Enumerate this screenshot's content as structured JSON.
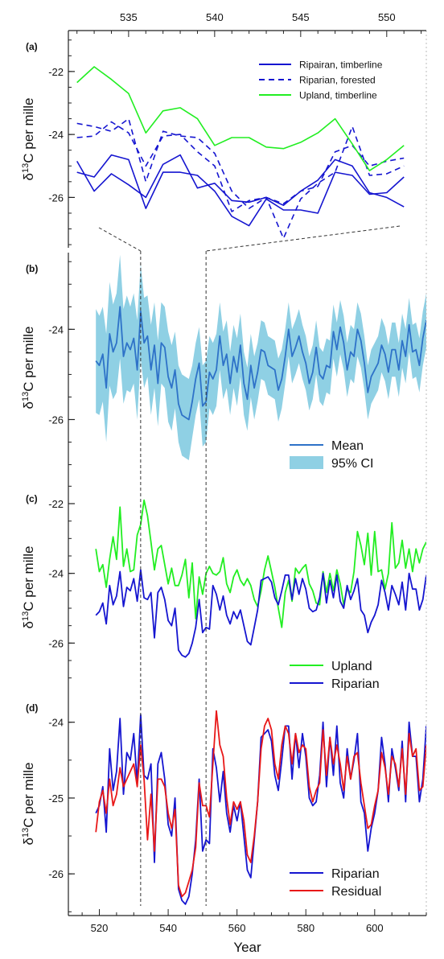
{
  "colors": {
    "upland": "#22ee22",
    "riparian": "#1515d0",
    "residual": "#e81818",
    "mean": "#2e72c8",
    "ci": "#8fd0e4",
    "axis": "#222222",
    "guide": "#333333"
  },
  "chart_data": [
    {
      "id": "a",
      "type": "line",
      "panel_label": "(a)",
      "ylabel": {
        "delta": "δ",
        "sup": "13",
        "rest": "C per mille"
      },
      "xlabel": "",
      "top_axis": true,
      "xlim": [
        531.5,
        552.3
      ],
      "ylim": [
        -27.6,
        -20.7
      ],
      "x_ticks": [
        535,
        540,
        545,
        550
      ],
      "y_ticks": [
        -22,
        -24,
        -26
      ],
      "x": [
        532,
        533,
        534,
        535,
        536,
        537,
        538,
        539,
        540,
        541,
        542,
        543,
        544,
        545,
        546,
        547,
        548,
        549,
        550,
        551
      ],
      "series": [
        {
          "name": "Ripairan, timberline",
          "color_key": "riparian",
          "dash": false,
          "values": [
            -24.85,
            -25.8,
            -25.25,
            -25.6,
            -26.0,
            -24.95,
            -24.65,
            -25.7,
            -25.55,
            -26.1,
            -26.15,
            -26.0,
            -26.25,
            -25.8,
            -25.45,
            -24.8,
            -25.0,
            -25.85,
            -26.0,
            -26.3
          ]
        },
        {
          "name": "",
          "color_key": "riparian",
          "dash": false,
          "values": [
            -25.2,
            -25.35,
            -24.65,
            -24.8,
            -26.35,
            -25.2,
            -25.2,
            -25.3,
            -25.8,
            -26.6,
            -26.9,
            -26.05,
            -26.4,
            -26.4,
            -26.5,
            -25.2,
            -25.3,
            -25.9,
            -25.85,
            -25.35
          ]
        },
        {
          "name": "Riparian, forested",
          "color_key": "riparian",
          "dash": true,
          "values": [
            -23.65,
            -23.75,
            -23.9,
            -23.5,
            -25.5,
            -23.9,
            -24.05,
            -24.1,
            -24.6,
            -25.8,
            -26.35,
            -26.0,
            -26.2,
            -25.8,
            -25.65,
            -24.55,
            -24.35,
            -25.0,
            -24.85,
            -24.75
          ]
        },
        {
          "name": "",
          "color_key": "riparian",
          "dash": true,
          "values": [
            -24.1,
            -24.05,
            -23.6,
            -23.95,
            -25.0,
            -24.05,
            -24.0,
            -24.55,
            -25.0,
            -26.45,
            -26.1,
            -26.0,
            -27.3,
            -26.05,
            -25.55,
            -25.2,
            -23.75,
            -25.3,
            -25.25,
            -25.0
          ]
        },
        {
          "name": "Upland, timberline",
          "color_key": "upland",
          "dash": false,
          "values": [
            -22.35,
            -21.85,
            -22.25,
            -22.7,
            -23.95,
            -23.25,
            -23.15,
            -23.5,
            -24.35,
            -24.1,
            -24.1,
            -24.4,
            -24.45,
            -24.25,
            -23.95,
            -23.5,
            -24.3,
            -25.15,
            -24.8,
            -24.35
          ]
        }
      ]
    },
    {
      "id": "b",
      "type": "area",
      "panel_label": "(b)",
      "ylabel": {
        "delta": "δ",
        "sup": "13",
        "rest": "C per mille"
      },
      "xlabel": "",
      "xlim": [
        511,
        615
      ],
      "ylim": [
        -27.4,
        -22.3
      ],
      "y_ticks": [
        -24,
        -26
      ],
      "x_start": 519,
      "x_step": 1,
      "series": [
        {
          "name": "Mean",
          "color_key": "mean",
          "values": [
            -24.7,
            -24.8,
            -24.55,
            -25.3,
            -24.1,
            -24.5,
            -24.3,
            -23.5,
            -24.6,
            -24.3,
            -24.45,
            -24.2,
            -24.9,
            -23.6,
            -24.3,
            -24.15,
            -24.9,
            -24.35,
            -25.2,
            -24.3,
            -24.4,
            -25.05,
            -25.3,
            -24.9,
            -25.65,
            -25.9,
            -25.95,
            -26.0,
            -25.6,
            -25.1,
            -24.75,
            -25.7,
            -25.6,
            -24.95,
            -25.1,
            -24.9,
            -24.15,
            -24.8,
            -24.55,
            -25.2,
            -24.6,
            -24.95,
            -24.35,
            -25.2,
            -25.55,
            -24.8,
            -25.3,
            -24.95,
            -24.45,
            -24.5,
            -24.8,
            -24.85,
            -24.9,
            -25.35,
            -25.1,
            -24.6,
            -24.0,
            -24.6,
            -24.4,
            -24.15,
            -24.5,
            -24.75,
            -25.2,
            -24.95,
            -24.4,
            -25.0,
            -25.1,
            -24.8,
            -24.85,
            -24.05,
            -24.45,
            -23.95,
            -24.3,
            -24.9,
            -24.5,
            -24.6,
            -24.0,
            -24.25,
            -24.75,
            -25.4,
            -25.05,
            -24.9,
            -24.75,
            -24.35,
            -24.55,
            -24.95,
            -24.45,
            -24.45,
            -24.9,
            -24.25,
            -24.6,
            -23.9,
            -24.5,
            -24.45,
            -24.8,
            -24.2,
            -23.8
          ]
        },
        {
          "name": "95% CI",
          "color_key": "ci",
          "band": true,
          "halfwidth": [
            1.15,
            1.1,
            1.05,
            1.2,
            1.15,
            1.05,
            1.1,
            1.15,
            1.05,
            1.05,
            0.95,
            1.0,
            1.1,
            1.05,
            1.0,
            0.9,
            1.0,
            0.95,
            0.95,
            0.9,
            0.9,
            1.0,
            0.95,
            0.85,
            0.85,
            0.9,
            0.9,
            0.9,
            0.8,
            0.8,
            0.8,
            0.9,
            0.9,
            0.8,
            0.8,
            0.8,
            0.75,
            0.75,
            0.75,
            0.7,
            0.7,
            0.75,
            0.7,
            0.7,
            0.7,
            0.7,
            0.7,
            0.65,
            0.65,
            0.65,
            0.65,
            0.65,
            0.65,
            0.7,
            0.65,
            0.6,
            0.6,
            0.6,
            0.6,
            0.6,
            0.6,
            0.6,
            0.6,
            0.6,
            0.6,
            0.6,
            0.6,
            0.6,
            0.6,
            0.6,
            0.6,
            0.6,
            0.6,
            0.6,
            0.6,
            0.6,
            0.6,
            0.6,
            0.6,
            0.6,
            0.6,
            0.6,
            0.6,
            0.6,
            0.6,
            0.6,
            0.6,
            0.6,
            0.6,
            0.6,
            0.6,
            0.6,
            0.6,
            0.6,
            0.6,
            0.6,
            0.6
          ]
        }
      ]
    },
    {
      "id": "c",
      "type": "line",
      "panel_label": "(c)",
      "ylabel": {
        "delta": "δ",
        "sup": "13",
        "rest": "C per mille"
      },
      "xlabel": "",
      "xlim": [
        511,
        615
      ],
      "ylim": [
        -27.4,
        -21.4
      ],
      "y_ticks": [
        -22,
        -24,
        -26
      ],
      "x_start": 519,
      "x_step": 1,
      "series": [
        {
          "name": "Upland",
          "color_key": "upland",
          "values": [
            -23.3,
            -23.95,
            -23.75,
            -24.4,
            -23.6,
            -22.95,
            -23.6,
            -22.1,
            -23.8,
            -23.3,
            -23.95,
            -23.9,
            -22.9,
            -22.6,
            -21.9,
            -22.35,
            -23.1,
            -23.9,
            -23.3,
            -23.2,
            -23.75,
            -24.3,
            -23.85,
            -24.35,
            -24.35,
            -24.05,
            -23.6,
            -24.7,
            -23.7,
            -25.3,
            -24.1,
            -24.6,
            -24.0,
            -23.8,
            -24.0,
            -24.05,
            -23.95,
            -23.55,
            -24.3,
            -24.55,
            -24.1,
            -23.9,
            -24.2,
            -24.35,
            -24.15,
            -24.35,
            -24.75,
            -24.95,
            -24.5,
            -23.9,
            -23.5,
            -23.95,
            -24.4,
            -25.0,
            -25.55,
            -24.55,
            -24.2,
            -24.8,
            -23.85,
            -24.0,
            -23.85,
            -23.75,
            -24.3,
            -24.5,
            -24.85,
            -24.9,
            -23.95,
            -24.55,
            -24.0,
            -24.5,
            -23.9,
            -24.3,
            -24.9,
            -24.45,
            -24.55,
            -23.95,
            -22.8,
            -23.2,
            -23.75,
            -22.85,
            -24.05,
            -22.8,
            -23.95,
            -23.9,
            -24.45,
            -24.0,
            -22.55,
            -23.85,
            -23.7,
            -23.05,
            -23.85,
            -23.3,
            -23.95,
            -23.3,
            -23.7,
            -23.3,
            -23.1
          ]
        },
        {
          "name": "Riparian",
          "color_key": "riparian",
          "values": [
            -25.2,
            -25.1,
            -24.85,
            -25.45,
            -24.35,
            -24.9,
            -24.65,
            -23.95,
            -24.95,
            -24.4,
            -24.5,
            -24.15,
            -24.8,
            -23.9,
            -24.7,
            -24.75,
            -24.55,
            -25.85,
            -24.55,
            -24.4,
            -24.75,
            -25.35,
            -25.5,
            -25.0,
            -26.2,
            -26.35,
            -26.4,
            -26.3,
            -26.0,
            -25.55,
            -24.75,
            -25.7,
            -25.55,
            -25.6,
            -24.35,
            -24.6,
            -25.05,
            -24.65,
            -25.2,
            -25.45,
            -25.1,
            -25.3,
            -25.05,
            -25.5,
            -25.95,
            -26.05,
            -25.55,
            -25.05,
            -24.2,
            -24.15,
            -24.1,
            -24.25,
            -24.7,
            -24.9,
            -24.5,
            -24.05,
            -24.05,
            -24.75,
            -24.15,
            -24.6,
            -24.15,
            -24.45,
            -25.0,
            -25.1,
            -25.05,
            -24.7,
            -24.0,
            -24.85,
            -24.2,
            -24.7,
            -24.05,
            -24.8,
            -25.0,
            -24.35,
            -24.75,
            -24.5,
            -24.15,
            -25.05,
            -25.2,
            -25.7,
            -25.4,
            -25.2,
            -24.9,
            -24.2,
            -24.55,
            -25.05,
            -24.35,
            -24.6,
            -24.9,
            -24.25,
            -25.05,
            -24.0,
            -24.45,
            -24.45,
            -25.05,
            -24.75,
            -24.05
          ]
        }
      ]
    },
    {
      "id": "d",
      "type": "line",
      "panel_label": "(d)",
      "ylabel": {
        "delta": "δ",
        "sup": "13",
        "rest": "C per mille"
      },
      "xlabel": "Year",
      "xlim": [
        511,
        615
      ],
      "ylim": [
        -26.55,
        -23.6
      ],
      "x_ticks": [
        520,
        540,
        560,
        580,
        600
      ],
      "y_ticks": [
        -24,
        -25,
        -26
      ],
      "x_start": 519,
      "x_step": 1,
      "series": [
        {
          "name": "Riparian",
          "color_key": "riparian",
          "values": [
            -25.2,
            -25.1,
            -24.85,
            -25.45,
            -24.35,
            -24.9,
            -24.65,
            -23.95,
            -24.95,
            -24.4,
            -24.5,
            -24.15,
            -24.8,
            -23.9,
            -24.7,
            -24.75,
            -24.55,
            -25.85,
            -24.55,
            -24.4,
            -24.75,
            -25.35,
            -25.5,
            -25.0,
            -26.2,
            -26.35,
            -26.4,
            -26.3,
            -26.0,
            -25.55,
            -24.75,
            -25.7,
            -25.55,
            -25.6,
            -24.35,
            -24.6,
            -25.05,
            -24.65,
            -25.2,
            -25.45,
            -25.1,
            -25.3,
            -25.05,
            -25.5,
            -25.95,
            -26.05,
            -25.55,
            -25.05,
            -24.2,
            -24.15,
            -24.1,
            -24.25,
            -24.7,
            -24.9,
            -24.5,
            -24.05,
            -24.05,
            -24.75,
            -24.15,
            -24.6,
            -24.15,
            -24.45,
            -25.0,
            -25.1,
            -25.05,
            -24.7,
            -24.0,
            -24.85,
            -24.2,
            -24.7,
            -24.05,
            -24.8,
            -25.0,
            -24.35,
            -24.75,
            -24.5,
            -24.15,
            -25.05,
            -25.2,
            -25.7,
            -25.4,
            -25.2,
            -24.9,
            -24.2,
            -24.55,
            -25.05,
            -24.35,
            -24.6,
            -24.9,
            -24.25,
            -25.05,
            -24.0,
            -24.45,
            -24.45,
            -25.05,
            -24.75,
            -24.05
          ]
        },
        {
          "name": "Residual",
          "color_key": "residual",
          "values": [
            -25.45,
            -25.05,
            -24.9,
            -25.2,
            -24.75,
            -25.1,
            -24.95,
            -24.6,
            -24.85,
            -24.75,
            -24.65,
            -24.55,
            -24.85,
            -24.3,
            -24.75,
            -25.55,
            -24.95,
            -25.7,
            -24.75,
            -24.75,
            -24.85,
            -25.2,
            -25.4,
            -25.15,
            -26.15,
            -26.3,
            -26.25,
            -26.1,
            -25.95,
            -25.65,
            -24.8,
            -25.1,
            -25.1,
            -25.25,
            -24.55,
            -23.85,
            -24.3,
            -24.45,
            -25.0,
            -25.35,
            -25.05,
            -25.15,
            -25.05,
            -25.3,
            -25.75,
            -25.85,
            -25.5,
            -25.05,
            -24.35,
            -24.05,
            -23.95,
            -24.1,
            -24.55,
            -24.75,
            -24.3,
            -24.05,
            -24.15,
            -24.55,
            -24.15,
            -24.4,
            -24.3,
            -24.35,
            -24.85,
            -25.05,
            -24.9,
            -24.8,
            -24.1,
            -24.7,
            -24.2,
            -24.55,
            -24.3,
            -24.55,
            -24.9,
            -24.45,
            -24.75,
            -24.45,
            -24.4,
            -24.8,
            -25.1,
            -25.4,
            -25.35,
            -25.1,
            -24.9,
            -24.4,
            -24.6,
            -24.95,
            -24.45,
            -24.55,
            -24.85,
            -24.35,
            -24.95,
            -24.15,
            -24.45,
            -24.35,
            -24.9,
            -24.85,
            -24.3
          ]
        }
      ]
    }
  ],
  "guides": {
    "in_fig_a": [
      531.5,
      552.3
    ],
    "in_fig_bd": [
      532,
      551
    ],
    "box_values": [
      532,
      551
    ]
  }
}
